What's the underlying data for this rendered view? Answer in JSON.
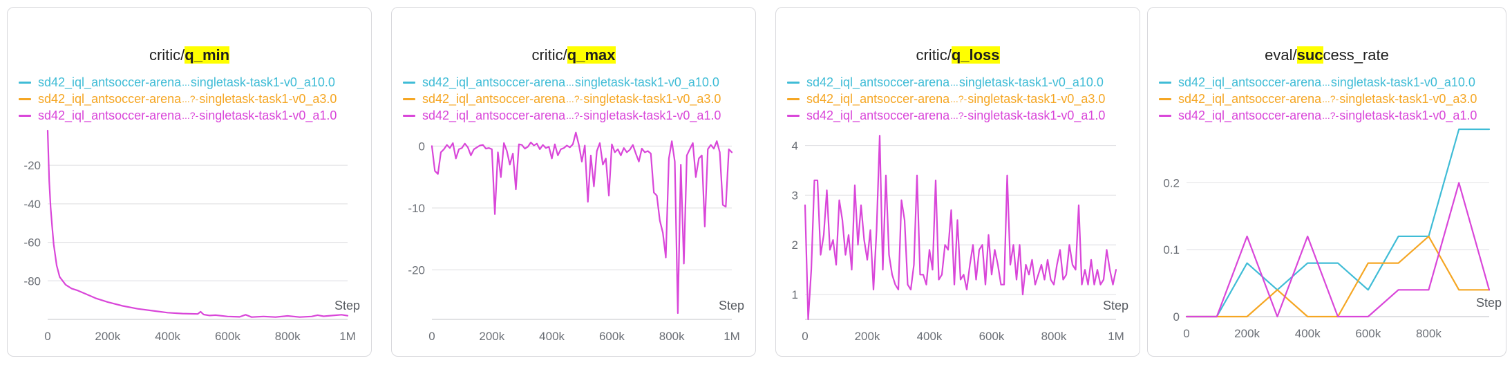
{
  "colors": {
    "cyan": "#3fbcd6",
    "orange": "#f5a623",
    "magenta": "#d946d9",
    "grid": "#e3e3e6",
    "highlight": "#ffff00"
  },
  "legend": [
    {
      "a": "sd42_iql_antsoccer-arena",
      "b": "...",
      "c": "singletask-task1-v0_a10.0",
      "color": "#3fbcd6"
    },
    {
      "a": "sd42_iql_antsoccer-arena",
      "b": "...?-",
      "c": "singletask-task1-v0_a3.0",
      "color": "#f5a623"
    },
    {
      "a": "sd42_iql_antsoccer-arena",
      "b": "...?-",
      "c": "singletask-task1-v0_a1.0",
      "color": "#d946d9"
    }
  ],
  "chart_data": [
    {
      "type": "line",
      "title_prefix": "critic/",
      "title_highlight": "q_min",
      "title_suffix": "",
      "xlabel": "Step",
      "xlim": [
        0,
        1000000
      ],
      "ylim": [
        -100,
        -2
      ],
      "yticks": [
        -20,
        -40,
        -60,
        -80
      ],
      "ytick_labels": [
        "-20",
        "-40",
        "-60",
        "-80"
      ],
      "xticks": [
        0,
        200000,
        400000,
        600000,
        800000,
        1000000
      ],
      "xtick_labels": [
        "0",
        "200k",
        "400k",
        "600k",
        "800k",
        "1M"
      ],
      "series": [
        {
          "color": "#d946d9",
          "x": [
            0,
            5000,
            10000,
            15000,
            20000,
            30000,
            40000,
            60000,
            80000,
            100000,
            130000,
            160000,
            200000,
            250000,
            300000,
            350000,
            400000,
            450000,
            500000,
            510000,
            520000,
            540000,
            560000,
            600000,
            640000,
            660000,
            680000,
            720000,
            760000,
            800000,
            840000,
            880000,
            900000,
            920000,
            950000,
            980000,
            1000000
          ],
          "y": [
            -2,
            -28,
            -42,
            -52,
            -61,
            -72,
            -78,
            -82,
            -84,
            -85,
            -87,
            -89,
            -91,
            -93,
            -94.5,
            -95.5,
            -96.5,
            -97,
            -97.2,
            -96,
            -97.5,
            -98,
            -97.8,
            -98.5,
            -98.7,
            -97.6,
            -98.8,
            -98.5,
            -98.8,
            -98.2,
            -98.8,
            -98.5,
            -97.8,
            -98.4,
            -98,
            -97.6,
            -98.1
          ]
        }
      ]
    },
    {
      "type": "line",
      "title_prefix": "critic/",
      "title_highlight": "q_max",
      "title_suffix": "",
      "xlabel": "Step",
      "xlim": [
        0,
        1000000
      ],
      "ylim": [
        -28,
        2.5
      ],
      "yticks": [
        0,
        -10,
        -20
      ],
      "ytick_labels": [
        "0",
        "-10",
        "-20"
      ],
      "xticks": [
        0,
        200000,
        400000,
        600000,
        800000,
        1000000
      ],
      "xtick_labels": [
        "0",
        "200k",
        "400k",
        "600k",
        "800k",
        "1M"
      ],
      "series": [
        {
          "color": "#d946d9",
          "x": [
            0,
            10000,
            20000,
            30000,
            40000,
            50000,
            60000,
            70000,
            80000,
            90000,
            100000,
            110000,
            120000,
            130000,
            140000,
            150000,
            160000,
            170000,
            180000,
            190000,
            200000,
            210000,
            220000,
            230000,
            240000,
            250000,
            260000,
            270000,
            280000,
            290000,
            300000,
            310000,
            320000,
            330000,
            340000,
            350000,
            360000,
            370000,
            380000,
            390000,
            400000,
            410000,
            420000,
            430000,
            440000,
            450000,
            460000,
            470000,
            480000,
            490000,
            500000,
            510000,
            520000,
            530000,
            540000,
            550000,
            560000,
            570000,
            580000,
            590000,
            600000,
            610000,
            620000,
            630000,
            640000,
            650000,
            660000,
            670000,
            680000,
            690000,
            700000,
            710000,
            720000,
            730000,
            740000,
            750000,
            760000,
            770000,
            780000,
            790000,
            800000,
            810000,
            820000,
            830000,
            840000,
            850000,
            860000,
            870000,
            880000,
            890000,
            900000,
            910000,
            920000,
            930000,
            940000,
            950000,
            960000,
            970000,
            980000,
            990000,
            1000000
          ],
          "y": [
            0,
            -4,
            -4.5,
            -1,
            -0.5,
            0.2,
            -0.3,
            0.5,
            -2,
            -0.5,
            -0.3,
            0.4,
            -0.2,
            -1.5,
            -0.5,
            -0.2,
            0.1,
            0.2,
            -0.4,
            -0.3,
            -0.5,
            -11,
            -1,
            -5,
            0.5,
            -0.8,
            -3,
            -1.2,
            -7,
            0.3,
            0.2,
            -0.4,
            -0.1,
            0.6,
            0.1,
            0.4,
            -0.5,
            0.2,
            -0.3,
            -0.1,
            -2,
            0.3,
            -1.5,
            -0.5,
            -0.3,
            0.1,
            -0.2,
            0.3,
            2.2,
            0.2,
            -2.5,
            0.1,
            -9,
            -1.5,
            -6.5,
            -0.8,
            0.5,
            -3,
            -2,
            -8,
            0.3,
            -1,
            -0.5,
            -1.5,
            -0.3,
            -1,
            -0.6,
            0.2,
            -1.2,
            -2.5,
            -0.4,
            -1,
            -0.8,
            -1.2,
            -7.5,
            -8,
            -12,
            -14,
            -18,
            -2,
            0.8,
            -2.5,
            -27,
            -3,
            -19,
            -1.5,
            -0.5,
            0.5,
            -5,
            -2,
            -1.5,
            -13,
            -0.5,
            0.2,
            -0.4,
            0.8,
            -1,
            -9.5,
            -9.8,
            -0.5,
            -1
          ],
          "x2": [],
          "y2": []
        }
      ]
    },
    {
      "type": "line",
      "title_prefix": "critic/",
      "title_highlight": "q_loss",
      "title_suffix": "",
      "xlabel": "Step",
      "xlim": [
        0,
        1000000
      ],
      "ylim": [
        0.5,
        4.3
      ],
      "yticks": [
        4,
        3,
        2,
        1
      ],
      "ytick_labels": [
        "4",
        "3",
        "2",
        "1"
      ],
      "xticks": [
        0,
        200000,
        400000,
        600000,
        800000,
        1000000
      ],
      "xtick_labels": [
        "0",
        "200k",
        "400k",
        "600k",
        "800k",
        "1M"
      ],
      "series": [
        {
          "color": "#d946d9",
          "x": [
            0,
            10000,
            20000,
            30000,
            40000,
            50000,
            60000,
            70000,
            80000,
            90000,
            100000,
            110000,
            120000,
            130000,
            140000,
            150000,
            160000,
            170000,
            180000,
            190000,
            200000,
            210000,
            220000,
            230000,
            240000,
            250000,
            260000,
            270000,
            280000,
            290000,
            300000,
            310000,
            320000,
            330000,
            340000,
            350000,
            360000,
            370000,
            380000,
            390000,
            400000,
            410000,
            420000,
            430000,
            440000,
            450000,
            460000,
            470000,
            480000,
            490000,
            500000,
            510000,
            520000,
            530000,
            540000,
            550000,
            560000,
            570000,
            580000,
            590000,
            600000,
            610000,
            620000,
            630000,
            640000,
            650000,
            660000,
            670000,
            680000,
            690000,
            700000,
            710000,
            720000,
            730000,
            740000,
            750000,
            760000,
            770000,
            780000,
            790000,
            800000,
            810000,
            820000,
            830000,
            840000,
            850000,
            860000,
            870000,
            880000,
            890000,
            900000,
            910000,
            920000,
            930000,
            940000,
            950000,
            960000,
            970000,
            980000,
            990000,
            1000000
          ],
          "y": [
            2.8,
            0.5,
            1.5,
            3.3,
            3.3,
            1.8,
            2.2,
            3.1,
            1.9,
            2.1,
            1.6,
            2.9,
            2.5,
            1.8,
            2.2,
            1.5,
            3.2,
            2.0,
            2.8,
            2.1,
            1.7,
            2.3,
            1.1,
            2.3,
            4.2,
            1.5,
            3.4,
            1.8,
            1.4,
            1.2,
            1.1,
            2.9,
            2.5,
            1.2,
            1.1,
            1.6,
            3.4,
            1.4,
            1.4,
            1.2,
            1.9,
            1.5,
            3.3,
            1.3,
            1.4,
            2.0,
            1.9,
            2.7,
            1.2,
            2.5,
            1.3,
            1.4,
            1.1,
            1.6,
            2.0,
            1.3,
            1.9,
            2.0,
            1.2,
            2.2,
            1.4,
            1.9,
            1.6,
            1.2,
            1.2,
            3.4,
            1.6,
            2.0,
            1.3,
            2.0,
            1.0,
            1.6,
            1.4,
            1.7,
            1.2,
            1.4,
            1.6,
            1.3,
            1.7,
            1.3,
            1.2,
            1.6,
            1.9,
            1.3,
            1.4,
            2.0,
            1.6,
            1.5,
            2.8,
            1.2,
            1.5,
            1.2,
            1.7,
            1.2,
            1.5,
            1.2,
            1.3,
            1.9,
            1.5,
            1.2,
            1.5
          ]
        }
      ]
    },
    {
      "type": "line",
      "title_prefix": "eval/",
      "title_highlight": "suc",
      "title_suffix": "cess_rate",
      "xlabel": "Step",
      "xlim": [
        0,
        1000000
      ],
      "ylim": [
        0,
        0.28
      ],
      "yticks": [
        0.2,
        0.1,
        0
      ],
      "ytick_labels": [
        "0.2",
        "0.1",
        "0"
      ],
      "xticks": [
        0,
        200000,
        400000,
        600000,
        800000
      ],
      "xtick_labels": [
        "0",
        "200k",
        "400k",
        "600k",
        "800k"
      ],
      "series": [
        {
          "name": "sd42_iql_antsoccer-arena...singletask-task1-v0_a10.0",
          "color": "#3fbcd6",
          "x": [
            0,
            100000,
            200000,
            300000,
            400000,
            500000,
            600000,
            700000,
            800000,
            900000,
            1000000
          ],
          "y": [
            0,
            0,
            0.08,
            0.04,
            0.08,
            0.08,
            0.04,
            0.12,
            0.12,
            0.28,
            0.28
          ]
        },
        {
          "name": "sd42_iql_antsoccer-arena...singletask-task1-v0_a3.0",
          "color": "#f5a623",
          "x": [
            0,
            100000,
            200000,
            300000,
            400000,
            500000,
            600000,
            700000,
            800000,
            900000,
            1000000
          ],
          "y": [
            0,
            0,
            0,
            0.04,
            0,
            0,
            0.08,
            0.08,
            0.12,
            0.04,
            0.04
          ]
        },
        {
          "name": "sd42_iql_antsoccer-arena...singletask-task1-v0_a1.0",
          "color": "#d946d9",
          "x": [
            0,
            100000,
            200000,
            300000,
            400000,
            500000,
            600000,
            700000,
            800000,
            900000,
            1000000
          ],
          "y": [
            0,
            0,
            0.12,
            0,
            0.12,
            0,
            0,
            0.04,
            0.04,
            0.2,
            0.04
          ]
        }
      ]
    }
  ]
}
